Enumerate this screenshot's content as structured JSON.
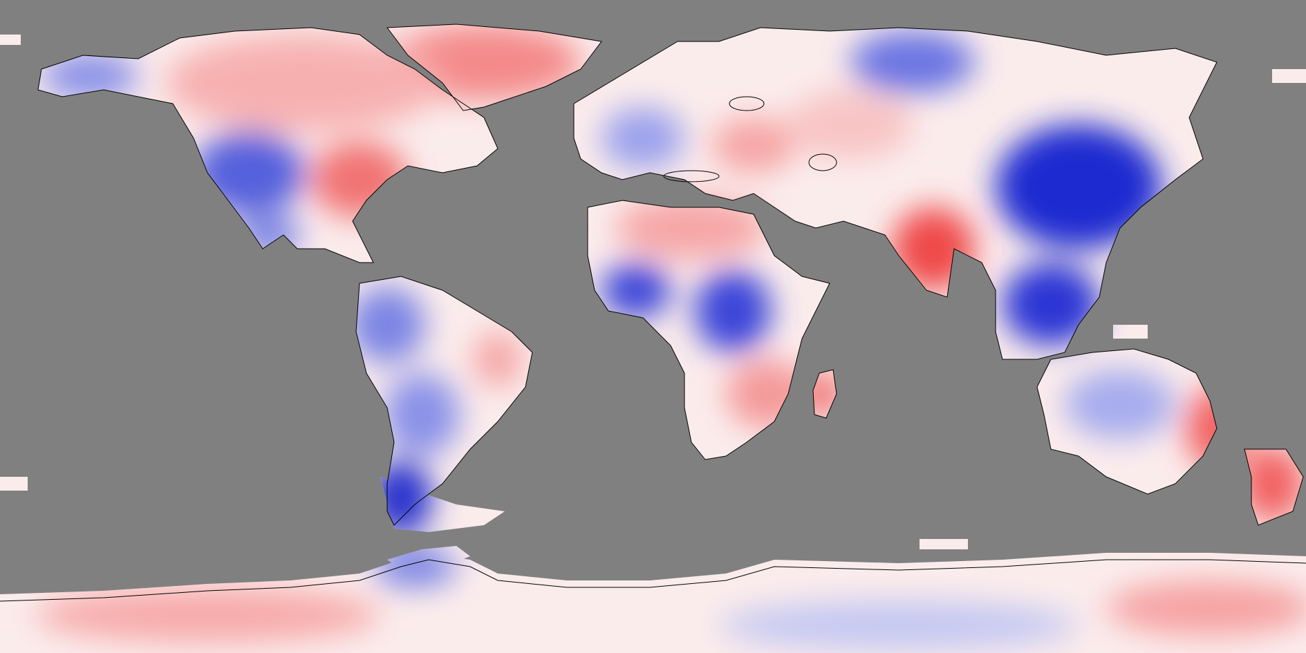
{
  "map": {
    "projection": "equirectangular",
    "ocean_color": "#808080",
    "coastline_color": "#000000",
    "colorscale": {
      "negative": "#0a14d2",
      "neutral": "#ffffff",
      "positive": "#f02828",
      "negative_meaning": "blue-anomaly",
      "positive_meaning": "red-anomaly"
    },
    "regions": [
      {
        "name": "greenland",
        "anomaly": 0.55
      },
      {
        "name": "alaska",
        "anomaly": -0.45
      },
      {
        "name": "northern-canada",
        "anomaly": 0.35
      },
      {
        "name": "eastern-united-states",
        "anomaly": 0.6
      },
      {
        "name": "western-united-states",
        "anomaly": -0.6
      },
      {
        "name": "mexico",
        "anomaly": -0.5
      },
      {
        "name": "northern-south-america",
        "anomaly": -0.5
      },
      {
        "name": "eastern-brazil",
        "anomaly": 0.3
      },
      {
        "name": "central-brazil",
        "anomaly": -0.45
      },
      {
        "name": "patagonia",
        "anomaly": -0.95
      },
      {
        "name": "western-europe",
        "anomaly": -0.4
      },
      {
        "name": "scandinavia",
        "anomaly": 0.25
      },
      {
        "name": "eastern-europe",
        "anomaly": 0.4
      },
      {
        "name": "northern-siberia",
        "anomaly": -0.6
      },
      {
        "name": "central-asia",
        "anomaly": 0.25
      },
      {
        "name": "eastern-china",
        "anomaly": -0.95
      },
      {
        "name": "india",
        "anomaly": 0.85
      },
      {
        "name": "southeast-asia",
        "anomaly": -0.8
      },
      {
        "name": "sahara",
        "anomaly": 0.35
      },
      {
        "name": "west-africa",
        "anomaly": -0.75
      },
      {
        "name": "central-africa",
        "anomaly": -0.75
      },
      {
        "name": "southern-africa",
        "anomaly": 0.45
      },
      {
        "name": "madagascar",
        "anomaly": 0.8
      },
      {
        "name": "australia",
        "anomaly": -0.35
      },
      {
        "name": "eastern-australia",
        "anomaly": 0.7
      },
      {
        "name": "new-zealand",
        "anomaly": 0.75
      },
      {
        "name": "antarctic-peninsula",
        "anomaly": -0.55
      },
      {
        "name": "antarctica",
        "anomaly": 0.35
      }
    ]
  }
}
